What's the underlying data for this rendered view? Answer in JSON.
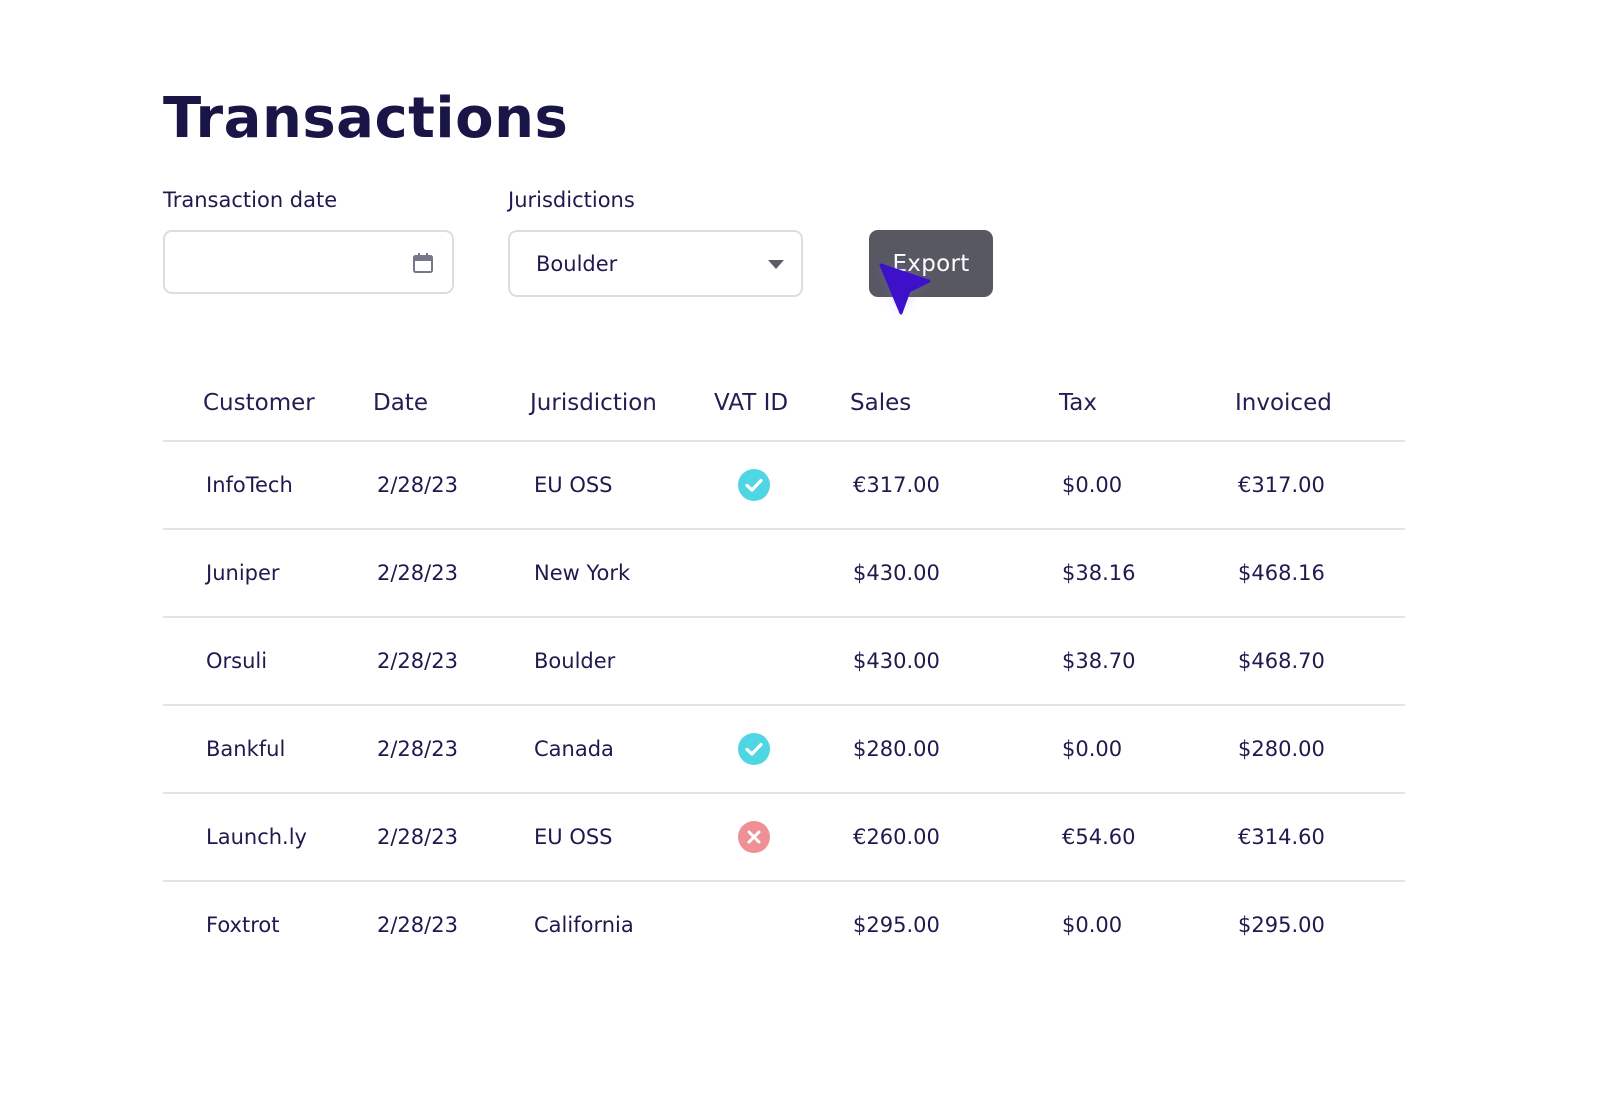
{
  "page": {
    "title": "Transactions"
  },
  "filters": {
    "date_label": "Transaction date",
    "date_value": "",
    "date_icon": "calendar-icon",
    "jurisdiction_label": "Jurisdictions",
    "jurisdiction_value": "Boulder",
    "jurisdiction_icon": "caret-down-icon",
    "export_label": "Export"
  },
  "colors": {
    "title": "#1a1547",
    "text": "#1e1a4d",
    "export_button": "#585862",
    "valid": "#4fd6e3",
    "invalid": "#ef8f96",
    "cursor": "#3d10c9"
  },
  "table": {
    "headers": [
      "Customer",
      "Date",
      "Jurisdiction",
      "VAT ID",
      "Sales",
      "Tax",
      "Invoiced"
    ],
    "rows": [
      {
        "customer": "InfoTech",
        "date": "2/28/23",
        "jurisdiction": "EU OSS",
        "vat": "valid",
        "sales": "€317.00",
        "tax": "$0.00",
        "invoiced": "€317.00"
      },
      {
        "customer": "Juniper",
        "date": "2/28/23",
        "jurisdiction": "New York",
        "vat": "none",
        "sales": "$430.00",
        "tax": "$38.16",
        "invoiced": "$468.16"
      },
      {
        "customer": "Orsuli",
        "date": "2/28/23",
        "jurisdiction": "Boulder",
        "vat": "none",
        "sales": "$430.00",
        "tax": "$38.70",
        "invoiced": "$468.70"
      },
      {
        "customer": "Bankful",
        "date": "2/28/23",
        "jurisdiction": "Canada",
        "vat": "valid",
        "sales": "$280.00",
        "tax": "$0.00",
        "invoiced": "$280.00"
      },
      {
        "customer": "Launch.ly",
        "date": "2/28/23",
        "jurisdiction": "EU OSS",
        "vat": "invalid",
        "sales": "€260.00",
        "tax": "€54.60",
        "invoiced": "€314.60"
      },
      {
        "customer": "Foxtrot",
        "date": "2/28/23",
        "jurisdiction": "California",
        "vat": "none",
        "sales": "$295.00",
        "tax": "$0.00",
        "invoiced": "$295.00"
      }
    ]
  }
}
